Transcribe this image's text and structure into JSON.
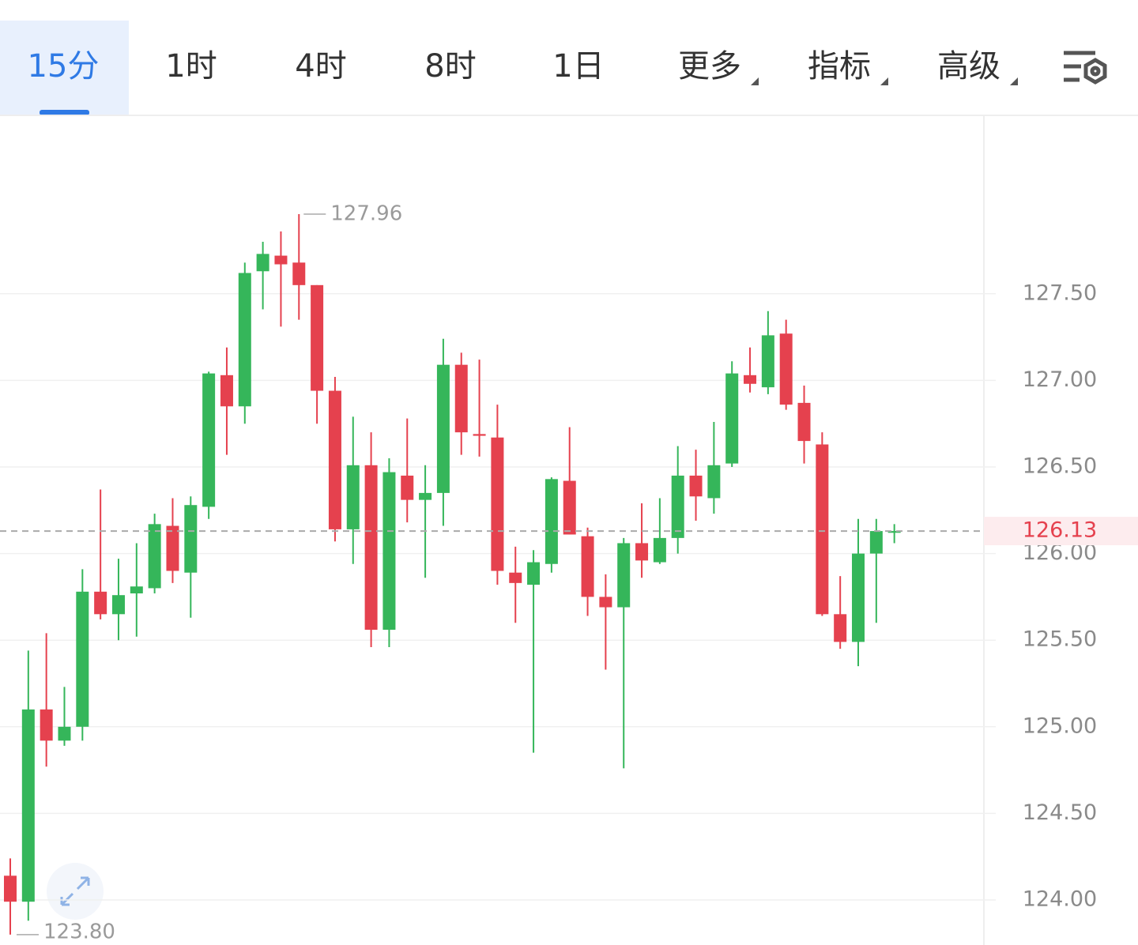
{
  "tabs": [
    "15分",
    "1时",
    "4时",
    "8时",
    "1日",
    "更多",
    "指标",
    "高级"
  ],
  "chart_data": {
    "type": "candlestick",
    "up_color": "#35b65a",
    "down_color": "#e5414e",
    "open": [
      124.14,
      123.99,
      125.1,
      124.92,
      125.0,
      125.78,
      125.65,
      125.77,
      125.8,
      126.16,
      125.89,
      126.27,
      127.03,
      126.85,
      127.63,
      127.72,
      127.68,
      127.55,
      126.94,
      126.14,
      126.51,
      125.56,
      126.45,
      126.31,
      126.35,
      127.09,
      126.69,
      126.67,
      125.89,
      125.82,
      125.94,
      126.42,
      126.1,
      125.75,
      125.69,
      126.06,
      125.95,
      126.09,
      126.45,
      126.32,
      126.52,
      127.03,
      126.96,
      127.27,
      126.87,
      126.63,
      125.65,
      125.49,
      126.0,
      126.12
    ],
    "high": [
      124.24,
      125.44,
      125.54,
      125.23,
      125.91,
      126.37,
      125.97,
      126.06,
      126.23,
      126.32,
      126.33,
      127.05,
      127.19,
      127.68,
      127.8,
      127.86,
      127.96,
      127.55,
      127.02,
      126.79,
      126.7,
      126.55,
      126.78,
      126.51,
      127.24,
      127.16,
      127.12,
      126.86,
      126.04,
      126.02,
      126.44,
      126.73,
      126.15,
      125.88,
      126.09,
      126.29,
      126.32,
      126.62,
      126.6,
      126.76,
      127.11,
      127.19,
      127.4,
      127.35,
      126.97,
      126.7,
      125.87,
      126.2,
      126.2,
      126.17
    ],
    "low": [
      123.8,
      123.88,
      124.77,
      124.89,
      124.92,
      125.62,
      125.5,
      125.52,
      125.77,
      125.83,
      125.63,
      126.2,
      126.57,
      126.75,
      127.41,
      127.31,
      127.35,
      126.75,
      126.07,
      125.94,
      125.46,
      125.46,
      126.18,
      125.86,
      126.16,
      126.57,
      126.56,
      125.82,
      125.6,
      124.85,
      125.89,
      126.11,
      125.64,
      125.33,
      124.76,
      125.86,
      125.94,
      126.0,
      126.19,
      126.23,
      126.5,
      126.93,
      126.92,
      126.83,
      126.52,
      125.64,
      125.45,
      125.35,
      125.6,
      126.06
    ],
    "close": [
      123.99,
      125.1,
      124.92,
      125.0,
      125.78,
      125.65,
      125.76,
      125.81,
      126.17,
      125.9,
      126.28,
      127.04,
      126.85,
      127.62,
      127.73,
      127.67,
      127.55,
      126.94,
      126.14,
      126.51,
      125.56,
      126.47,
      126.31,
      126.35,
      127.09,
      126.7,
      126.68,
      125.9,
      125.83,
      125.95,
      126.43,
      126.11,
      125.75,
      125.69,
      126.06,
      125.96,
      126.09,
      126.45,
      126.33,
      126.51,
      127.04,
      126.98,
      127.26,
      126.86,
      126.65,
      125.65,
      125.49,
      126.0,
      126.13,
      126.13
    ],
    "ylim": [
      123.74,
      128.53
    ],
    "yticks": [
      {
        "value": 124.0,
        "label": "124.00"
      },
      {
        "value": 124.5,
        "label": "124.50"
      },
      {
        "value": 125.0,
        "label": "125.00"
      },
      {
        "value": 125.5,
        "label": "125.50"
      },
      {
        "value": 126.0,
        "label": "126.00"
      },
      {
        "value": 126.5,
        "label": "126.50"
      },
      {
        "value": 127.0,
        "label": "127.00"
      },
      {
        "value": 127.5,
        "label": "127.50"
      }
    ],
    "grid": true,
    "high_mark": 127.96,
    "low_mark": {
      "value": 123.8,
      "label": "123.80"
    },
    "last_price": 126.13
  }
}
